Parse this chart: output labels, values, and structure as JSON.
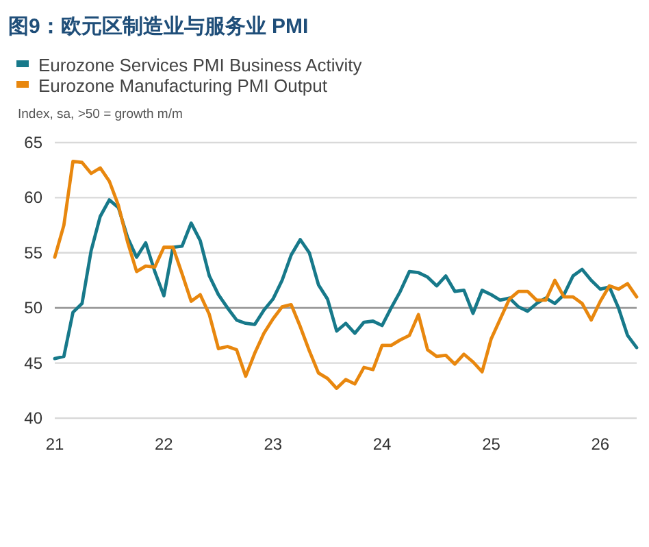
{
  "chart_data": {
    "type": "line",
    "title": "图9：欧元区制造业与服务业 PMI",
    "ylabel": "Index, sa, >50 = growth m/m",
    "x": [
      "2021-01",
      "2021-02",
      "2021-03",
      "2021-04",
      "2021-05",
      "2021-06",
      "2021-07",
      "2021-08",
      "2021-09",
      "2021-10",
      "2021-11",
      "2021-12",
      "2022-01",
      "2022-02",
      "2022-03",
      "2022-04",
      "2022-05",
      "2022-06",
      "2022-07",
      "2022-08",
      "2022-09",
      "2022-10",
      "2022-11",
      "2022-12",
      "2023-01",
      "2023-02",
      "2023-03",
      "2023-04",
      "2023-05",
      "2023-06",
      "2023-07",
      "2023-08",
      "2023-09",
      "2023-10",
      "2023-11",
      "2023-12",
      "2024-01",
      "2024-02",
      "2024-03",
      "2024-04",
      "2024-05",
      "2024-06",
      "2024-07",
      "2024-08",
      "2024-09",
      "2024-10",
      "2024-11",
      "2024-12",
      "2025-01",
      "2025-02",
      "2025-03",
      "2025-04",
      "2025-05",
      "2025-06",
      "2025-07",
      "2025-08",
      "2025-09",
      "2025-10",
      "2025-11",
      "2025-12",
      "2026-01",
      "2026-02",
      "2026-03",
      "2026-04",
      "2026-05"
    ],
    "series": [
      {
        "name": "Eurozone Services PMI Business Activity",
        "color": "#17798a",
        "values": [
          45.4,
          45.6,
          49.6,
          50.4,
          55.2,
          58.3,
          59.8,
          59.1,
          56.4,
          54.6,
          55.9,
          53.3,
          51.1,
          55.5,
          55.6,
          57.7,
          56.1,
          52.9,
          51.2,
          50.0,
          48.9,
          48.6,
          48.5,
          49.8,
          50.8,
          52.5,
          54.8,
          56.2,
          55.0,
          52.1,
          50.8,
          47.9,
          48.6,
          47.7,
          48.7,
          48.8,
          48.4,
          50.0,
          51.5,
          53.3,
          53.2,
          52.8,
          52.0,
          52.9,
          51.5,
          51.6,
          49.5,
          51.6,
          51.2,
          50.7,
          50.9,
          50.1,
          49.7,
          50.4,
          50.9,
          50.4,
          51.2,
          52.9,
          53.5,
          52.5,
          51.7,
          51.9,
          50.0,
          47.5,
          46.4
        ]
      },
      {
        "name": "Eurozone Manufacturing PMI Output",
        "color": "#e8870e",
        "values": [
          54.6,
          57.5,
          63.3,
          63.2,
          62.2,
          62.7,
          61.5,
          59.3,
          56.0,
          53.3,
          53.8,
          53.7,
          55.5,
          55.5,
          53.1,
          50.6,
          51.2,
          49.4,
          46.3,
          46.5,
          46.2,
          43.8,
          45.9,
          47.7,
          49.0,
          50.1,
          50.3,
          48.3,
          46.1,
          44.1,
          43.6,
          42.7,
          43.5,
          43.1,
          44.6,
          44.4,
          46.6,
          46.6,
          47.1,
          47.5,
          49.4,
          46.2,
          45.6,
          45.7,
          44.9,
          45.8,
          45.1,
          44.2,
          47.2,
          49.0,
          50.8,
          51.5,
          51.5,
          50.7,
          50.7,
          52.5,
          51.0,
          51.0,
          50.4,
          48.9,
          50.6,
          52.0,
          51.7,
          52.2,
          51.0
        ]
      }
    ],
    "xlim": [
      "2021-01",
      "2026-05"
    ],
    "xticks": [
      {
        "value": "2021-01",
        "label": "21"
      },
      {
        "value": "2022-01",
        "label": "22"
      },
      {
        "value": "2023-01",
        "label": "23"
      },
      {
        "value": "2024-01",
        "label": "24"
      },
      {
        "value": "2025-01",
        "label": "25"
      },
      {
        "value": "2026-01",
        "label": "26"
      }
    ],
    "ylim": [
      40,
      65
    ],
    "yticks": [
      40,
      45,
      50,
      55,
      60,
      65
    ],
    "grid": "y",
    "legend": "top left",
    "ref_lines": [
      {
        "axis": "y",
        "value": 50,
        "color": "#9a9a9a"
      }
    ]
  }
}
